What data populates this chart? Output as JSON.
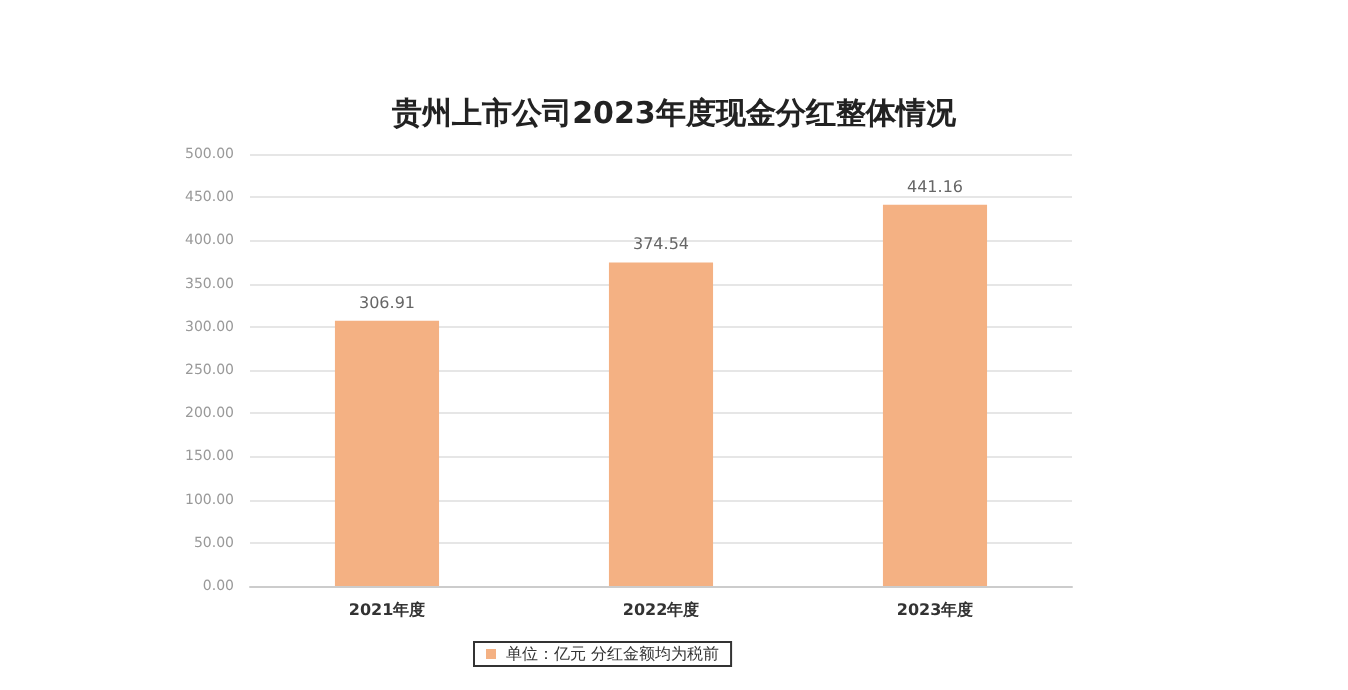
{
  "chart_data": {
    "type": "bar",
    "title": "贵州上市公司2023年度现金分红整体情况",
    "categories": [
      "2021年度",
      "2022年度",
      "2023年度"
    ],
    "series": [
      {
        "name": "单位：亿元 分红金额均为税前",
        "color": "#f4b183",
        "values": [
          306.91,
          374.54,
          441.16
        ]
      }
    ],
    "ylim": [
      0,
      500
    ],
    "yticks": [
      {
        "value": 0,
        "label": "0.00"
      },
      {
        "value": 50,
        "label": "50.00"
      },
      {
        "value": 100,
        "label": "100.00"
      },
      {
        "value": 150,
        "label": "150.00"
      },
      {
        "value": 200,
        "label": "200.00"
      },
      {
        "value": 250,
        "label": "250.00"
      },
      {
        "value": 300,
        "label": "300.00"
      },
      {
        "value": 350,
        "label": "350.00"
      },
      {
        "value": 400,
        "label": "400.00"
      },
      {
        "value": 450,
        "label": "450.00"
      },
      {
        "value": 500,
        "label": "500.00"
      }
    ],
    "data_labels": true,
    "grid": "y",
    "legend": "bottom"
  }
}
